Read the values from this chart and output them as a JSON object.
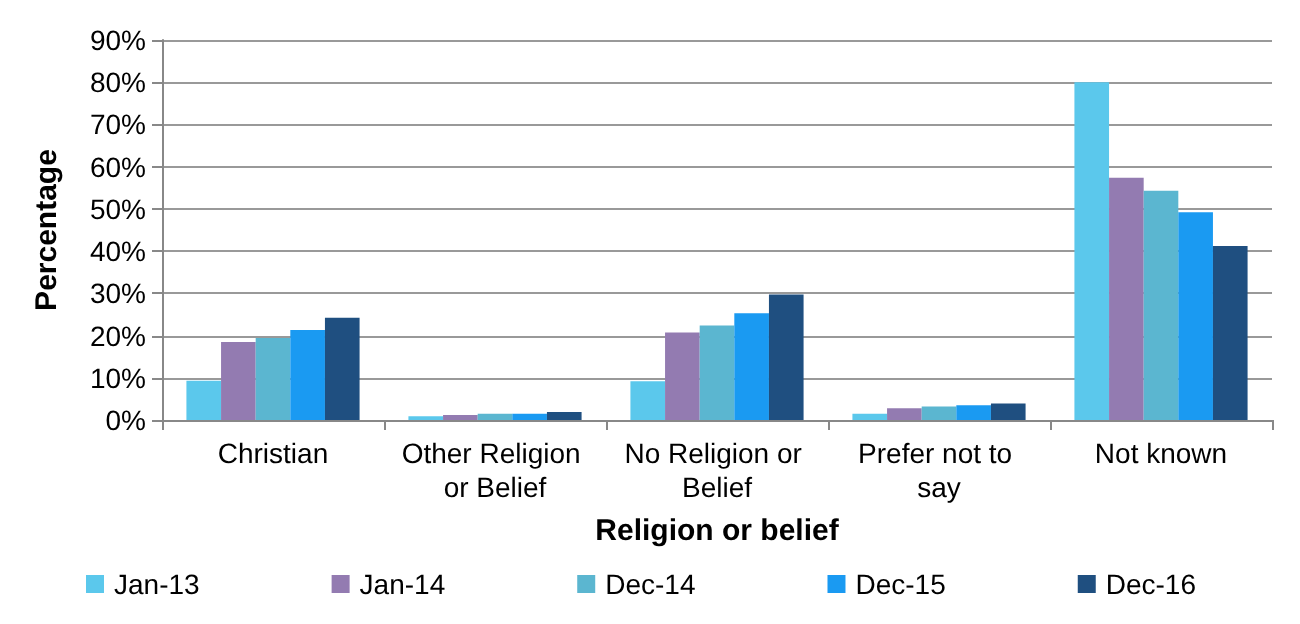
{
  "chart_data": {
    "type": "bar",
    "xlabel": "Religion or belief",
    "ylabel": "Percentage",
    "categories": [
      "Christian",
      "Other Religion or Belief",
      "No Religion or Belief",
      "Prefer not to say",
      "Not known"
    ],
    "series": [
      {
        "name": "Jan-13",
        "color": "#5bc8ec",
        "values": [
          9.3,
          0.9,
          9.2,
          1.5,
          80
        ]
      },
      {
        "name": "Jan-14",
        "color": "#937bb1",
        "values": [
          18.5,
          1.2,
          20.7,
          2.8,
          57.4
        ]
      },
      {
        "name": "Dec-14",
        "color": "#5bb6d0",
        "values": [
          19.4,
          1.5,
          22.4,
          3.2,
          54.3
        ]
      },
      {
        "name": "Dec-15",
        "color": "#1a9af2",
        "values": [
          21.3,
          1.5,
          25.3,
          3.5,
          49.2
        ]
      },
      {
        "name": "Dec-16",
        "color": "#1f4f80",
        "values": [
          24.2,
          1.9,
          29.7,
          3.9,
          41.2
        ]
      }
    ],
    "ylim": [
      0,
      90
    ],
    "yticks": [
      {
        "value": 0,
        "label": "0%"
      },
      {
        "value": 10,
        "label": "10%"
      },
      {
        "value": 20,
        "label": "20%"
      },
      {
        "value": 30,
        "label": "30%"
      },
      {
        "value": 40,
        "label": "40%"
      },
      {
        "value": 50,
        "label": "50%"
      },
      {
        "value": 60,
        "label": "60%"
      },
      {
        "value": 70,
        "label": "70%"
      },
      {
        "value": 80,
        "label": "80%"
      },
      {
        "value": 90,
        "label": "90%"
      }
    ],
    "grid": "y",
    "legend": "bottom"
  }
}
